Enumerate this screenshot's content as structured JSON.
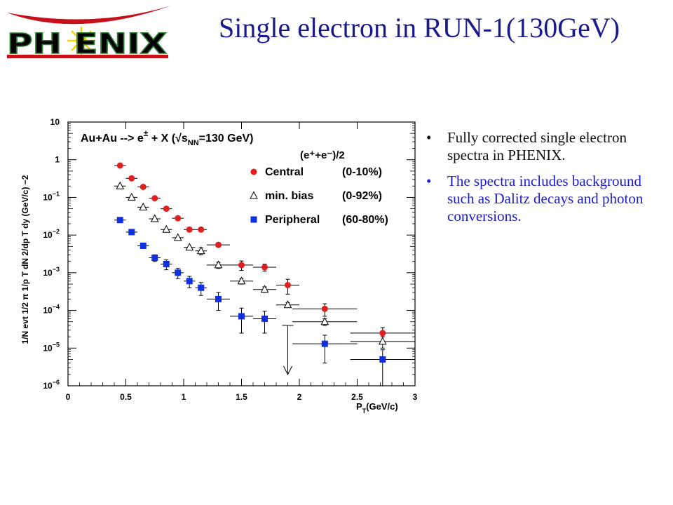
{
  "header": {
    "logo_text": "PH ENIX",
    "title": "Single electron in RUN-1(130GeV)"
  },
  "bullets": [
    {
      "marker": "•",
      "text": "Fully corrected single electron spectra in PHENIX.",
      "color": "#111111"
    },
    {
      "marker": "•",
      "text": "The spectra includes background such as Dalitz decays and photon conversions.",
      "color": "#1c1ccc"
    }
  ],
  "chart_data": {
    "type": "scatter",
    "log_y": true,
    "xlim": [
      0,
      3
    ],
    "ylim_exp": [
      -6,
      1
    ],
    "x_ticks": [
      "0",
      "0.5",
      "1",
      "1.5",
      "2",
      "2.5",
      "3"
    ],
    "y_ticks": [
      {
        "base": "10",
        "exp": ""
      },
      {
        "base": "1",
        "exp": ""
      },
      {
        "base": "10",
        "exp": "−1"
      },
      {
        "base": "10",
        "exp": "−2"
      },
      {
        "base": "10",
        "exp": "−3"
      },
      {
        "base": "10",
        "exp": "−4"
      },
      {
        "base": "10",
        "exp": "−5"
      },
      {
        "base": "10",
        "exp": "−6"
      }
    ],
    "xlabel": "P",
    "xlabel_sub": "T",
    "xlabel_rest": "(GeV/c)",
    "ylabel": "1/N evt 1/2 π 1/p T dN 2/dp T dy (GeV/c) −2",
    "annotation_main": "Au+Au --> e",
    "annotation_sup": "±",
    "annotation_rest": " + X (√s",
    "annotation_sub": "NN",
    "annotation_end": "=130 GeV)",
    "legend_title": "(e⁺+e⁻)/2",
    "legend": [
      {
        "label": "Central",
        "range": "(0-10%)",
        "marker": "circle",
        "color": "#e02020"
      },
      {
        "label": "min. bias",
        "range": "(0-92%)",
        "marker": "triangle",
        "color": "#000000"
      },
      {
        "label": "Peripheral",
        "range": "(60-80%)",
        "marker": "square",
        "color": "#1030e0"
      }
    ],
    "series": [
      {
        "name": "Central (0-10%)",
        "marker": "circle",
        "color": "#e02020",
        "points": [
          {
            "x": 0.45,
            "y": 0.7,
            "xerr": 0.05,
            "yerr": 0
          },
          {
            "x": 0.55,
            "y": 0.32,
            "xerr": 0.05,
            "yerr": 0
          },
          {
            "x": 0.65,
            "y": 0.19,
            "xerr": 0.05,
            "yerr": 0
          },
          {
            "x": 0.75,
            "y": 0.095,
            "xerr": 0.05,
            "yerr": 0
          },
          {
            "x": 0.85,
            "y": 0.05,
            "xerr": 0.05,
            "yerr": 0
          },
          {
            "x": 0.95,
            "y": 0.028,
            "xerr": 0.05,
            "yerr": 0
          },
          {
            "x": 1.05,
            "y": 0.014,
            "xerr": 0.05,
            "yerr": 0
          },
          {
            "x": 1.15,
            "y": 0.014,
            "xerr": 0.05,
            "yerr": 0
          },
          {
            "x": 1.3,
            "y": 0.0055,
            "xerr": 0.1,
            "yerr": 0
          },
          {
            "x": 1.5,
            "y": 0.0016,
            "xerr": 0.1,
            "yerr": 0.00045
          },
          {
            "x": 1.7,
            "y": 0.0014,
            "xerr": 0.1,
            "yerr": 0.0003
          },
          {
            "x": 1.9,
            "y": 0.00047,
            "xerr": 0.1,
            "yerr": 0.0002
          },
          {
            "x": 2.22,
            "y": 0.00011,
            "xerr": 0.28,
            "yerr": 4e-05
          },
          {
            "x": 2.72,
            "y": 2.5e-05,
            "xerr": 0.28,
            "yerr": 1e-05
          }
        ]
      },
      {
        "name": "min. bias (0-92%)",
        "marker": "triangle",
        "color": "#000000",
        "points": [
          {
            "x": 0.45,
            "y": 0.2,
            "xerr": 0.05,
            "yerr": 0
          },
          {
            "x": 0.55,
            "y": 0.1,
            "xerr": 0.05,
            "yerr": 0
          },
          {
            "x": 0.65,
            "y": 0.055,
            "xerr": 0.05,
            "yerr": 0
          },
          {
            "x": 0.75,
            "y": 0.027,
            "xerr": 0.05,
            "yerr": 0
          },
          {
            "x": 0.85,
            "y": 0.014,
            "xerr": 0.05,
            "yerr": 0
          },
          {
            "x": 0.95,
            "y": 0.0085,
            "xerr": 0.05,
            "yerr": 0
          },
          {
            "x": 1.05,
            "y": 0.0047,
            "xerr": 0.05,
            "yerr": 0
          },
          {
            "x": 1.15,
            "y": 0.0038,
            "xerr": 0.05,
            "yerr": 0.0008
          },
          {
            "x": 1.3,
            "y": 0.0016,
            "xerr": 0.1,
            "yerr": 0.0003
          },
          {
            "x": 1.5,
            "y": 0.0006,
            "xerr": 0.1,
            "yerr": 0.0001
          },
          {
            "x": 1.7,
            "y": 0.00036,
            "xerr": 0.1,
            "yerr": 6e-05
          },
          {
            "x": 1.9,
            "y": 0.00014,
            "xerr": 0.1,
            "yerr": 2e-05
          },
          {
            "x": 2.22,
            "y": 5e-05,
            "xerr": 0.28,
            "yerr": 1e-05
          },
          {
            "x": 2.72,
            "y": 1.5e-05,
            "xerr": 0.28,
            "yerr": 5e-06
          }
        ]
      },
      {
        "name": "Peripheral (60-80%)",
        "marker": "square",
        "color": "#1030e0",
        "points": [
          {
            "x": 0.45,
            "y": 0.025,
            "xerr": 0.05,
            "yerr": 0
          },
          {
            "x": 0.55,
            "y": 0.012,
            "xerr": 0.05,
            "yerr": 0
          },
          {
            "x": 0.65,
            "y": 0.0052,
            "xerr": 0.05,
            "yerr": 0.0008
          },
          {
            "x": 0.75,
            "y": 0.0025,
            "xerr": 0.05,
            "yerr": 0.0005
          },
          {
            "x": 0.85,
            "y": 0.0017,
            "xerr": 0.05,
            "yerr": 0.0005
          },
          {
            "x": 0.95,
            "y": 0.001,
            "xerr": 0.05,
            "yerr": 0.0003
          },
          {
            "x": 1.05,
            "y": 0.0006,
            "xerr": 0.05,
            "yerr": 0.0002
          },
          {
            "x": 1.15,
            "y": 0.0004,
            "xerr": 0.05,
            "yerr": 0.00015
          },
          {
            "x": 1.3,
            "y": 0.0002,
            "xerr": 0.1,
            "yerr": 0.0001
          },
          {
            "x": 1.5,
            "y": 7e-05,
            "xerr": 0.1,
            "yerr": 4.5e-05
          },
          {
            "x": 1.7,
            "y": 6e-05,
            "xerr": 0.1,
            "yerr": 3.5e-05
          },
          {
            "x": 2.22,
            "y": 1.3e-05,
            "xerr": 0.28,
            "yerr": 9e-06
          },
          {
            "x": 2.72,
            "y": 5e-06,
            "xerr": 0.28,
            "yerr": 4e-06
          }
        ]
      }
    ],
    "upper_limit": {
      "x": 1.9,
      "y": 4e-05
    }
  }
}
